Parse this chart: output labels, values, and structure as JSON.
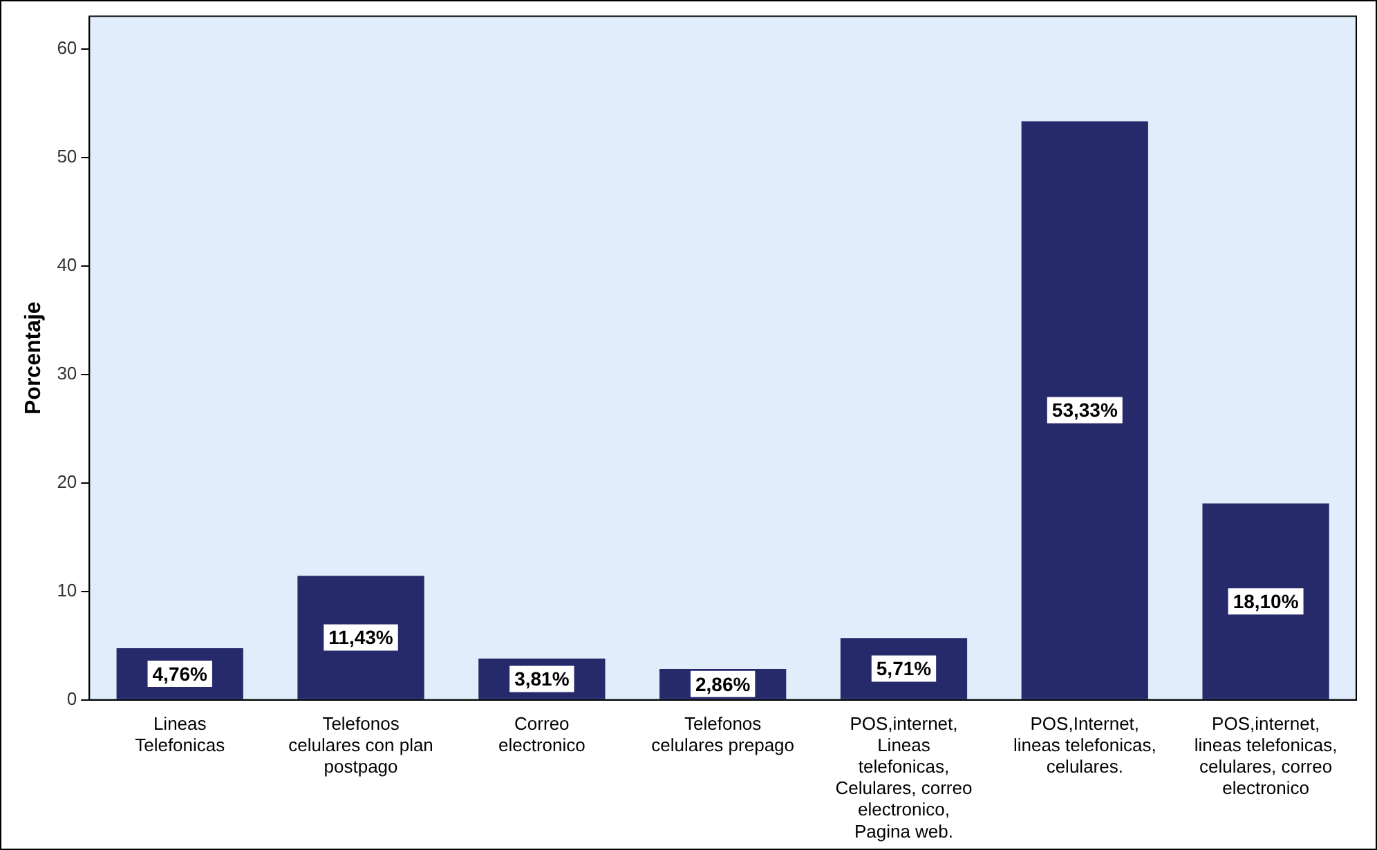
{
  "chart_data": {
    "type": "bar",
    "ylabel": "Porcentaje",
    "categories": [
      "Lineas Telefonicas",
      "Telefonos celulares con plan postpago",
      "Correo electronico",
      "Telefonos celulares prepago",
      "POS,internet, Lineas telefonicas, Celulares, correo electronico, Pagina web.",
      "POS,Internet, lineas telefonicas, celulares.",
      "POS,internet, lineas telefonicas, celulares, correo electronico"
    ],
    "values": [
      4.76,
      11.43,
      3.81,
      2.86,
      5.71,
      53.33,
      18.1
    ],
    "value_labels": [
      "4,76%",
      "11,43%",
      "3,81%",
      "2,86%",
      "5,71%",
      "53,33%",
      "18,10%"
    ],
    "color": "#262a6b",
    "ylim": [
      0,
      63
    ],
    "yticks": [
      0,
      10,
      20,
      30,
      40,
      50,
      60
    ],
    "grid": false,
    "legend": false
  }
}
